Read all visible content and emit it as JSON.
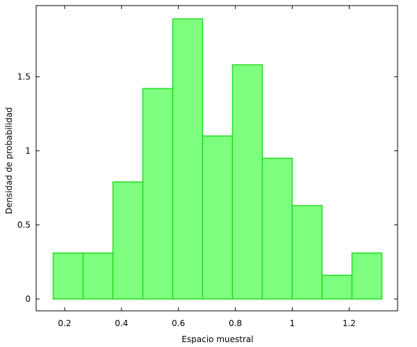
{
  "chart_data": {
    "type": "bar",
    "title": "",
    "xlabel": "Espacio muestral",
    "ylabel": "Densidad de probabilidad",
    "xlim": [
      0.1,
      1.37
    ],
    "ylim": [
      -0.08,
      1.98
    ],
    "xticks": [
      0.2,
      0.4,
      0.6,
      0.8,
      1,
      1.2
    ],
    "xtick_labels": [
      "0.2",
      "0.4",
      "0.6",
      "0.8",
      "1",
      "1.2"
    ],
    "yticks": [
      0,
      0.5,
      1,
      1.5
    ],
    "ytick_labels": [
      "0",
      "0.5",
      "1",
      "1.5"
    ],
    "grid": false,
    "legend": "none",
    "bar_fill": "#7fff7f",
    "bar_edge": "#22dd22",
    "bins": [
      {
        "x0": 0.16,
        "x1": 0.265,
        "value": 0.31
      },
      {
        "x0": 0.265,
        "x1": 0.37,
        "value": 0.31
      },
      {
        "x0": 0.37,
        "x1": 0.475,
        "value": 0.79
      },
      {
        "x0": 0.475,
        "x1": 0.58,
        "value": 1.42
      },
      {
        "x0": 0.58,
        "x1": 0.685,
        "value": 1.89
      },
      {
        "x0": 0.685,
        "x1": 0.79,
        "value": 1.1
      },
      {
        "x0": 0.79,
        "x1": 0.895,
        "value": 1.58
      },
      {
        "x0": 0.895,
        "x1": 1.0,
        "value": 0.95
      },
      {
        "x0": 1.0,
        "x1": 1.105,
        "value": 0.63
      },
      {
        "x0": 1.105,
        "x1": 1.21,
        "value": 0.16
      },
      {
        "x0": 1.21,
        "x1": 1.315,
        "value": 0.31
      }
    ]
  }
}
